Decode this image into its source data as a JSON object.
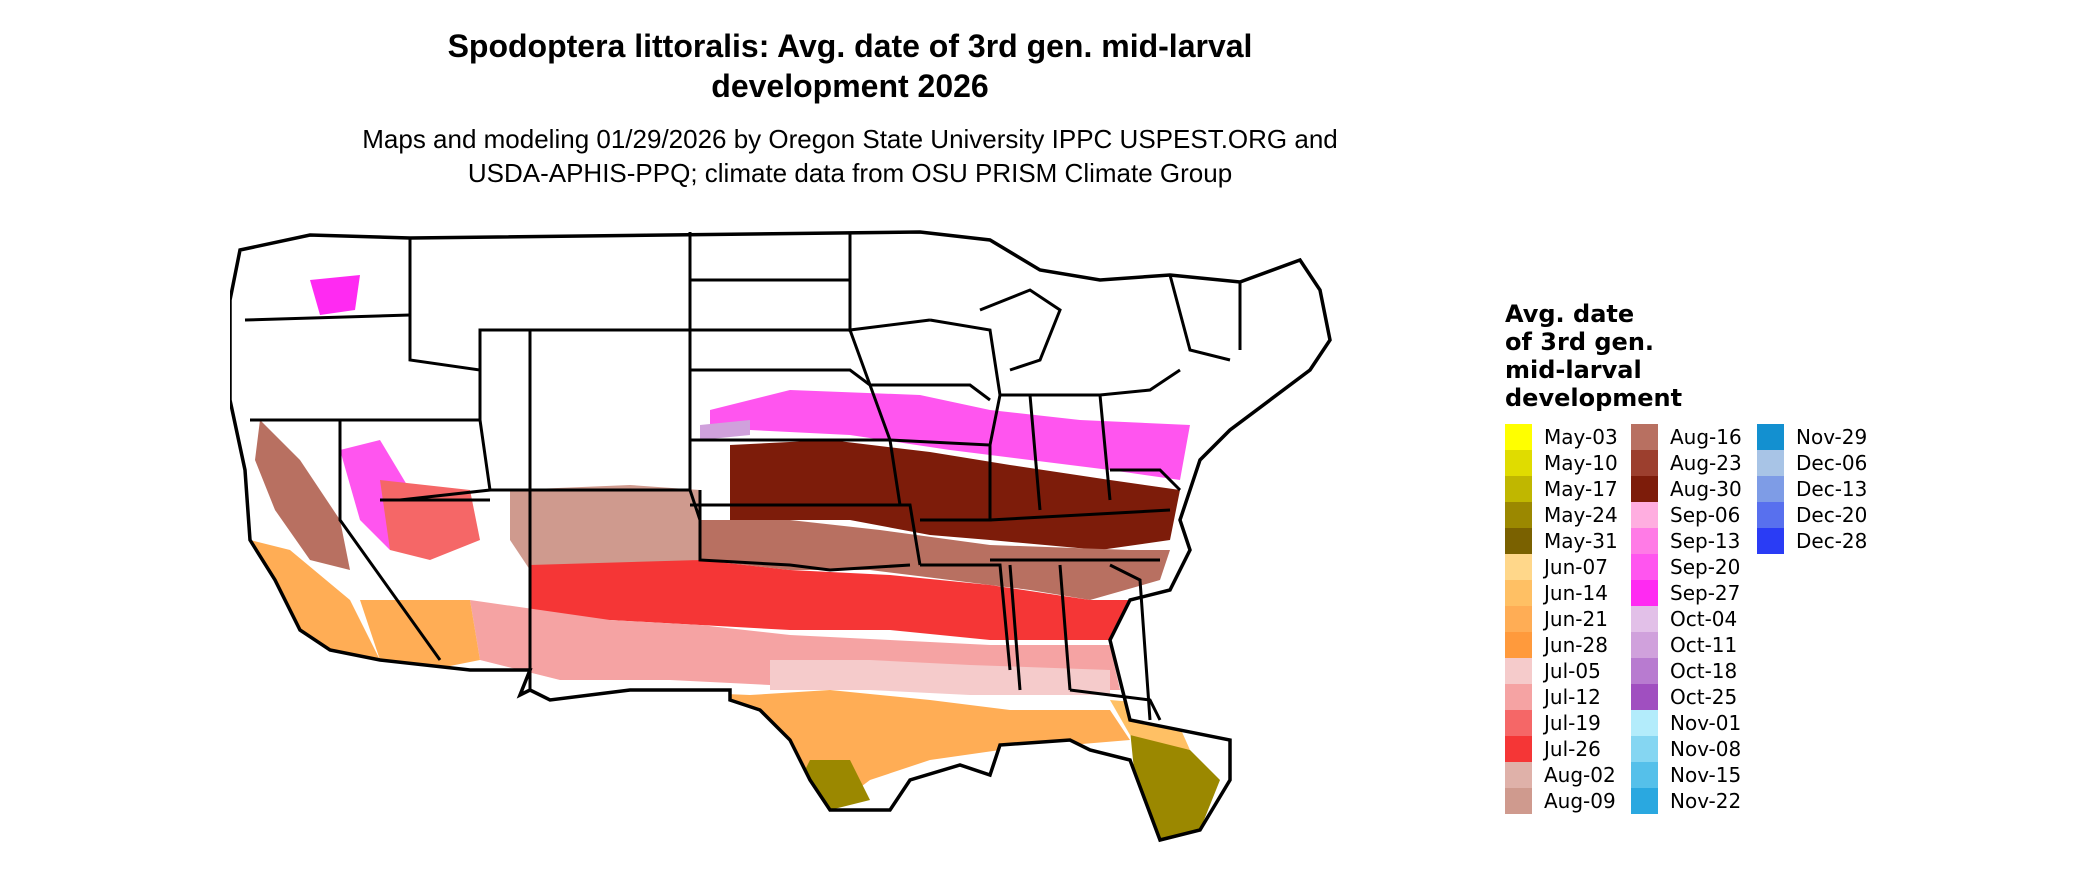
{
  "title": {
    "line1": "Spodoptera littoralis: Avg. date of 3rd gen. mid-larval",
    "line2": "development 2026"
  },
  "subtitle": {
    "line1": "Maps and modeling 01/29/2026 by Oregon State University IPPC USPEST.ORG and",
    "line2": "USDA-APHIS-PPQ; climate data from OSU PRISM Climate Group"
  },
  "legend": {
    "title_lines": [
      "Avg. date",
      "of 3rd gen.",
      "mid-larval",
      "development"
    ],
    "columns": [
      [
        {
          "label": "May-03",
          "color": "#ffff00"
        },
        {
          "label": "May-10",
          "color": "#e0dc00"
        },
        {
          "label": "May-17",
          "color": "#c0b700"
        },
        {
          "label": "May-24",
          "color": "#9b8800"
        },
        {
          "label": "May-31",
          "color": "#7a6100"
        },
        {
          "label": "Jun-07",
          "color": "#ffd78a"
        },
        {
          "label": "Jun-14",
          "color": "#ffc064"
        },
        {
          "label": "Jun-21",
          "color": "#ffad55"
        },
        {
          "label": "Jun-28",
          "color": "#ff9a3c"
        },
        {
          "label": "Jul-05",
          "color": "#f5cbcb"
        },
        {
          "label": "Jul-12",
          "color": "#f5a3a3"
        },
        {
          "label": "Jul-19",
          "color": "#f56767"
        },
        {
          "label": "Jul-26",
          "color": "#f53636"
        },
        {
          "label": "Aug-02",
          "color": "#dfb1a9"
        },
        {
          "label": "Aug-09",
          "color": "#cf9a8e"
        }
      ],
      [
        {
          "label": "Aug-16",
          "color": "#b87061"
        },
        {
          "label": "Aug-23",
          "color": "#9c3f2e"
        },
        {
          "label": "Aug-30",
          "color": "#7d1c0a"
        },
        {
          "label": "Sep-06",
          "color": "#ffaee0"
        },
        {
          "label": "Sep-13",
          "color": "#ff7be6"
        },
        {
          "label": "Sep-20",
          "color": "#ff55ef"
        },
        {
          "label": "Sep-27",
          "color": "#ff2af2"
        },
        {
          "label": "Oct-04",
          "color": "#e2c0e8"
        },
        {
          "label": "Oct-11",
          "color": "#d0a1dc"
        },
        {
          "label": "Oct-18",
          "color": "#b87bd0"
        },
        {
          "label": "Oct-25",
          "color": "#a04fc0"
        },
        {
          "label": "Nov-01",
          "color": "#b3ecfb"
        },
        {
          "label": "Nov-08",
          "color": "#85d6f2"
        },
        {
          "label": "Nov-15",
          "color": "#55c0ea"
        },
        {
          "label": "Nov-22",
          "color": "#2aa8e0"
        }
      ],
      [
        {
          "label": "Nov-29",
          "color": "#1390d0"
        },
        {
          "label": "Dec-06",
          "color": "#a8c4e6"
        },
        {
          "label": "Dec-13",
          "color": "#7e9ce6"
        },
        {
          "label": "Dec-20",
          "color": "#5870ee"
        },
        {
          "label": "Dec-28",
          "color": "#2a3cf5"
        }
      ]
    ]
  },
  "map_colors": {
    "unsuitable": "#ffffff",
    "state_border": "#000000"
  }
}
